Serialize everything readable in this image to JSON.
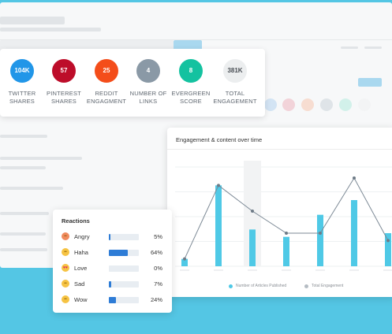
{
  "stats": [
    {
      "value": "104K",
      "label": "TWITTER\nSHARES",
      "color": "#2196e8"
    },
    {
      "value": "57",
      "label": "PINTEREST\nSHARES",
      "color": "#bd0d2a"
    },
    {
      "value": "25",
      "label": "REDDIT\nENGAGMENT",
      "color": "#f44d1a"
    },
    {
      "value": "4",
      "label": "NUMBER OF\nLINKS",
      "color": "#8a99a6"
    },
    {
      "value": "8",
      "label": "EVERGREEN\nSCORE",
      "color": "#14c2a0"
    },
    {
      "value": "381K",
      "label": "TOTAL\nENGAGEMENT",
      "color": "#eceeef"
    }
  ],
  "chart": {
    "title": "Engagement & content over time",
    "legend": [
      {
        "label": "Number of Articles Published",
        "color": "#4fc9e6"
      },
      {
        "label": "Total Engagement",
        "color": "#b5bcc3"
      }
    ]
  },
  "chart_data": {
    "type": "bar",
    "series": [
      {
        "name": "Number of Articles Published",
        "values": [
          1,
          11,
          5,
          4,
          7,
          9,
          4.5
        ]
      },
      {
        "name": "Total Engagement",
        "values": [
          1,
          11,
          7.5,
          4.5,
          4.5,
          12,
          3.5
        ]
      }
    ],
    "ylim": [
      0,
      13.5
    ],
    "highlighted_index": 2,
    "grid": true
  },
  "reactions": {
    "title": "Reactions",
    "items": [
      {
        "label": "Angry",
        "pct": "5%",
        "fraction": 0.05,
        "icon": "angry-icon",
        "glyph": "••"
      },
      {
        "label": "Haha",
        "pct": "64%",
        "fraction": 0.64,
        "icon": "haha-icon",
        "glyph": "••"
      },
      {
        "label": "Love",
        "pct": "0%",
        "fraction": 0.0,
        "icon": "love-icon",
        "glyph": "♥♥"
      },
      {
        "label": "Sad",
        "pct": "7%",
        "fraction": 0.07,
        "icon": "sad-icon",
        "glyph": "••"
      },
      {
        "label": "Wow",
        "pct": "24%",
        "fraction": 0.24,
        "icon": "wow-icon",
        "glyph": "••"
      }
    ]
  }
}
